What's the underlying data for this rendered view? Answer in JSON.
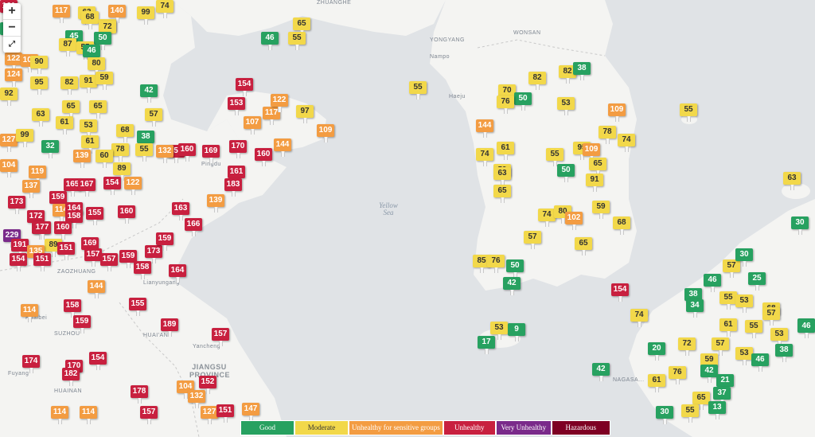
{
  "colors": {
    "good": "#27a160",
    "moderate": "#f2d84a",
    "usg": "#f39c42",
    "unhealthy": "#c8203f",
    "very_unhealthy": "#7a2a8a",
    "hazardous": "#7e0023",
    "land": "#f4f4f2",
    "water": "#e0e3e6"
  },
  "controls": {
    "zoom_in": "+",
    "zoom_out": "−",
    "fullscreen": "⤢"
  },
  "places": [
    {
      "id": "zhuanghe",
      "text": "ZHUANGHE"
    },
    {
      "id": "yongyang",
      "text": "YONGYANG"
    },
    {
      "id": "wonsan",
      "text": "WONSAN"
    },
    {
      "id": "nampo",
      "text": "Nampo"
    },
    {
      "id": "haeju",
      "text": "Haeju"
    },
    {
      "id": "zaozhuang",
      "text": "ZAOZHUANG"
    },
    {
      "id": "lianyungang",
      "text": "Lianyungang"
    },
    {
      "id": "huaibei",
      "text": "Huaibei"
    },
    {
      "id": "suzhou",
      "text": "SUZHOU"
    },
    {
      "id": "huaian",
      "text": "HUAI'AN"
    },
    {
      "id": "yancheng",
      "text": "Yancheng"
    },
    {
      "id": "fuyang",
      "text": "Fuyang"
    },
    {
      "id": "huainan",
      "text": "HUAINAN"
    },
    {
      "id": "jiangsu",
      "text": "JIANGSU PROVINCE"
    },
    {
      "id": "nagasaki",
      "text": "NAGASA..."
    },
    {
      "id": "pingdu",
      "text": "Pingdu"
    }
  ],
  "seas": [
    {
      "id": "yellow_sea",
      "text": "Yellow Sea"
    }
  ],
  "legend": [
    {
      "id": "good",
      "label": "Good",
      "color": "#27a160",
      "text_color": "#ffffff"
    },
    {
      "id": "moderate",
      "label": "Moderate",
      "color": "#f2d84a",
      "text_color": "#333333"
    },
    {
      "id": "usg",
      "label": "Unhealthy for sensitive groups",
      "color": "#f39c42",
      "text_color": "#ffffff"
    },
    {
      "id": "unhealthy",
      "label": "Unhealthy",
      "color": "#c8203f",
      "text_color": "#ffffff"
    },
    {
      "id": "very_unhealthy",
      "label": "Very Unhealthy",
      "color": "#7a2a8a",
      "text_color": "#ffffff"
    },
    {
      "id": "hazardous",
      "label": "Hazardous",
      "color": "#7e0023",
      "text_color": "#ffffff"
    }
  ],
  "stations": [
    "161",
    "117",
    "74",
    "140",
    "99",
    "63",
    "68",
    "82",
    "72",
    "50",
    "45",
    "42",
    "87",
    "55",
    "46",
    "122",
    "109",
    "90",
    "124",
    "95",
    "80",
    "82",
    "91",
    "59",
    "65",
    "92",
    "63",
    "61",
    "65",
    "53",
    "42",
    "57",
    "68",
    "38",
    "127",
    "99",
    "32",
    "61",
    "78",
    "55",
    "104",
    "119",
    "139",
    "60",
    "89",
    "153",
    "137",
    "165",
    "167",
    "154",
    "122",
    "169",
    "170",
    "160",
    "132",
    "173",
    "159",
    "114",
    "164",
    "158",
    "172",
    "167",
    "177",
    "160",
    "155",
    "160",
    "229",
    "191",
    "89",
    "169",
    "157",
    "154",
    "135",
    "151",
    "151",
    "157",
    "159",
    "173",
    "163",
    "166",
    "159",
    "158",
    "164",
    "144",
    "158",
    "114",
    "155",
    "159",
    "189",
    "157",
    "174",
    "170",
    "182",
    "154",
    "178",
    "157",
    "104",
    "132",
    "114",
    "114",
    "127",
    "151",
    "147",
    "152",
    "154",
    "153",
    "117",
    "122",
    "107",
    "144",
    "97",
    "109",
    "160",
    "161",
    "183",
    "139",
    "55",
    "46",
    "65",
    "55",
    "82",
    "70",
    "82",
    "38",
    "50",
    "109",
    "144",
    "76",
    "53",
    "78",
    "61",
    "95",
    "74",
    "74",
    "59",
    "55",
    "109",
    "65",
    "63",
    "50",
    "65",
    "74",
    "80",
    "102",
    "91",
    "57",
    "65",
    "68",
    "59",
    "85",
    "76",
    "50",
    "42",
    "154",
    "74",
    "53",
    "9",
    "17",
    "63",
    "55",
    "42",
    "30",
    "57",
    "30",
    "46",
    "25",
    "38",
    "34",
    "55",
    "53",
    "68",
    "61",
    "55",
    "46",
    "57",
    "20",
    "72",
    "53",
    "59",
    "76",
    "42",
    "21",
    "46",
    "37",
    "65",
    "13",
    "53",
    "61",
    "55",
    "30",
    "38",
    "46",
    "57"
  ]
}
